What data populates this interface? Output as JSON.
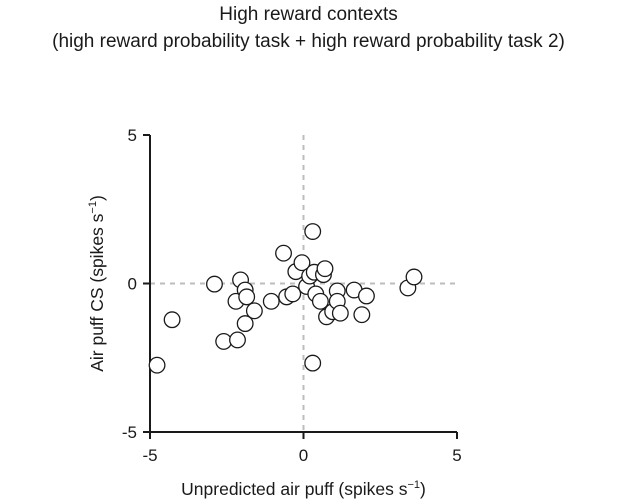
{
  "chart_data": {
    "type": "scatter",
    "title": "High reward contexts",
    "subtitle": "(high reward probability task + high reward probability task 2)",
    "xlabel": "Unpredicted air puff (spikes s",
    "xlabel_sup": "−1",
    "xlabel_close": ")",
    "ylabel": "Air puff CS (spikes s",
    "ylabel_sup": "−1",
    "ylabel_close": ")",
    "xlim": [
      -5,
      5
    ],
    "ylim": [
      -5,
      5
    ],
    "x_ticks": [
      -5,
      0,
      5
    ],
    "y_ticks": [
      -5,
      0,
      5
    ],
    "x_tick_labels": [
      "-5",
      "0",
      "5"
    ],
    "y_tick_labels": [
      "-5",
      "0",
      "5"
    ],
    "reference_lines": {
      "x": 0,
      "y": 0,
      "style": "dashed",
      "color": "#bdbdbd"
    },
    "grid": false,
    "marker": {
      "shape": "circle",
      "fill": "#ffffff",
      "stroke": "#1a1a1a"
    },
    "series": [
      {
        "points": [
          [
            -4.77,
            -2.75
          ],
          [
            -4.28,
            -1.22
          ],
          [
            -2.9,
            -0.02
          ],
          [
            -2.6,
            -1.95
          ],
          [
            -2.2,
            -0.6
          ],
          [
            -2.15,
            -1.9
          ],
          [
            -2.05,
            0.12
          ],
          [
            -1.9,
            -0.22
          ],
          [
            -1.9,
            -1.35
          ],
          [
            -1.85,
            -0.45
          ],
          [
            -1.6,
            -0.92
          ],
          [
            -1.05,
            -0.6
          ],
          [
            -0.65,
            1.02
          ],
          [
            -0.55,
            -0.45
          ],
          [
            -0.35,
            -0.35
          ],
          [
            -0.25,
            0.4
          ],
          [
            -0.05,
            0.7
          ],
          [
            0.1,
            -0.1
          ],
          [
            0.2,
            0.25
          ],
          [
            0.3,
            1.75
          ],
          [
            0.3,
            -2.68
          ],
          [
            0.35,
            0.38
          ],
          [
            0.4,
            -0.35
          ],
          [
            0.55,
            -0.6
          ],
          [
            0.65,
            0.3
          ],
          [
            0.7,
            0.5
          ],
          [
            0.75,
            -1.12
          ],
          [
            0.95,
            -0.95
          ],
          [
            1.1,
            -0.25
          ],
          [
            1.1,
            -0.6
          ],
          [
            1.2,
            -1.0
          ],
          [
            1.65,
            -0.22
          ],
          [
            1.9,
            -1.05
          ],
          [
            2.05,
            -0.42
          ],
          [
            3.4,
            -0.15
          ],
          [
            3.6,
            0.22
          ]
        ]
      }
    ]
  }
}
